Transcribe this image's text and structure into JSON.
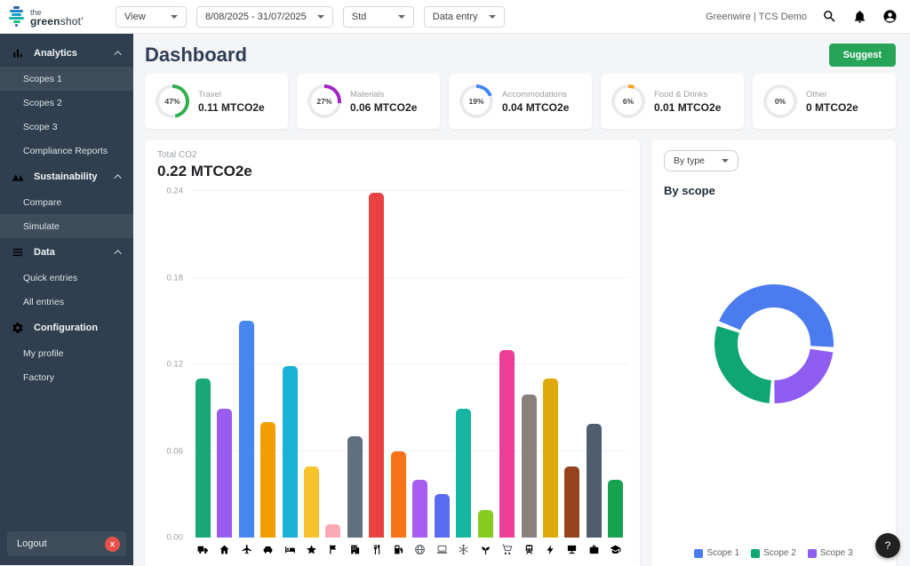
{
  "topbar": {
    "logo": {
      "line1": "the",
      "bold": "green",
      "rest": "shot",
      "suffix": "’"
    },
    "dropdowns": [
      {
        "label": "View"
      },
      {
        "label": "8/08/2025 - 31/07/2025"
      },
      {
        "label": "Std"
      },
      {
        "label": "Data entry"
      }
    ],
    "account_text": "Greenwire | TCS Demo"
  },
  "sidebar": {
    "sections": [
      {
        "label": "Analytics",
        "icon": "bar-chart-icon",
        "collapsible": true,
        "items": [
          {
            "label": "Scopes 1",
            "selected": true
          },
          {
            "label": "Scopes 2",
            "selected": false
          },
          {
            "label": "Scope 3",
            "selected": false
          },
          {
            "label": "Compliance Reports",
            "selected": false
          }
        ]
      },
      {
        "label": "Sustainability",
        "icon": "mountains-icon",
        "collapsible": true,
        "items": [
          {
            "label": "Compare",
            "selected": false
          },
          {
            "label": "Simulate",
            "selected": true
          }
        ]
      },
      {
        "label": "Data",
        "icon": "list-icon",
        "collapsible": true,
        "items": [
          {
            "label": "Quick entries",
            "selected": false
          },
          {
            "label": "All entries",
            "selected": false
          }
        ]
      },
      {
        "label": "Configuration",
        "icon": "gear-icon",
        "collapsible": false,
        "items": [
          {
            "label": "My profile",
            "selected": false
          },
          {
            "label": "Factory",
            "selected": false
          }
        ]
      }
    ],
    "logout_label": "Logout"
  },
  "page": {
    "title": "Dashboard",
    "suggest_label": "Suggest"
  },
  "kpis": [
    {
      "label": "Travel",
      "percent": 47,
      "value": "0.11 MTCO2e",
      "color": "#2fae4e"
    },
    {
      "label": "Materials",
      "percent": 27,
      "value": "0.06 MTCO2e",
      "color": "#a224c4"
    },
    {
      "label": "Accommodations",
      "percent": 19,
      "value": "0.04 MTCO2e",
      "color": "#4285f4"
    },
    {
      "label": "Food & Drinks",
      "percent": 6,
      "value": "0.01 MTCO2e",
      "color": "#f9a01b"
    },
    {
      "label": "Other",
      "percent": 0,
      "value": "0 MTCO2e",
      "color": "#e0e2e5"
    }
  ],
  "chart_data": [
    {
      "type": "bar",
      "title": "Total CO2",
      "total_label": "0.22 MTCO2e",
      "unit": "MTCO2e",
      "ylim": [
        0,
        0.24
      ],
      "yticks": [
        0,
        0.06,
        0.12,
        0.18,
        0.24
      ],
      "grid": "dotted-horizontal",
      "categories": [
        "truck",
        "home",
        "airplane",
        "car",
        "hotel",
        "star",
        "flag",
        "office-building",
        "restaurant",
        "fuel-pump",
        "globe",
        "laptop",
        "snowflake",
        "plant",
        "shopping-cart",
        "train",
        "lightning-bolt",
        "pos-terminal",
        "briefcase",
        "graduation-cap"
      ],
      "values": [
        0.11,
        0.089,
        0.15,
        0.08,
        0.119,
        0.049,
        0.009,
        0.07,
        0.239,
        0.06,
        0.04,
        0.03,
        0.089,
        0.019,
        0.13,
        0.099,
        0.11,
        0.049,
        0.079,
        0.04
      ],
      "colors": [
        "#18a877",
        "#9a5cf0",
        "#4687f1",
        "#f29e02",
        "#17b2d6",
        "#f7c32a",
        "#f8a9b4",
        "#5f7081",
        "#e84342",
        "#f87219",
        "#a85cf0",
        "#5a6cf0",
        "#16b5a2",
        "#85cc1e",
        "#ec3d97",
        "#8a817d",
        "#dfa90a",
        "#94431d",
        "#4e5d70",
        "#16a14e"
      ]
    },
    {
      "type": "donut",
      "filter_label": "By type",
      "title": "By scope",
      "series": [
        {
          "name": "Scope 1",
          "value": 46,
          "color": "#4a7cf0"
        },
        {
          "name": "Scope 2",
          "value": 30,
          "color": "#10a674"
        },
        {
          "name": "Scope 3",
          "value": 24,
          "color": "#8e5cf0"
        }
      ],
      "draw_order": [
        0,
        2,
        1
      ],
      "start_angle": -70,
      "gap_degrees": 5,
      "legend_position": "bottom"
    }
  ],
  "help_label": "?"
}
